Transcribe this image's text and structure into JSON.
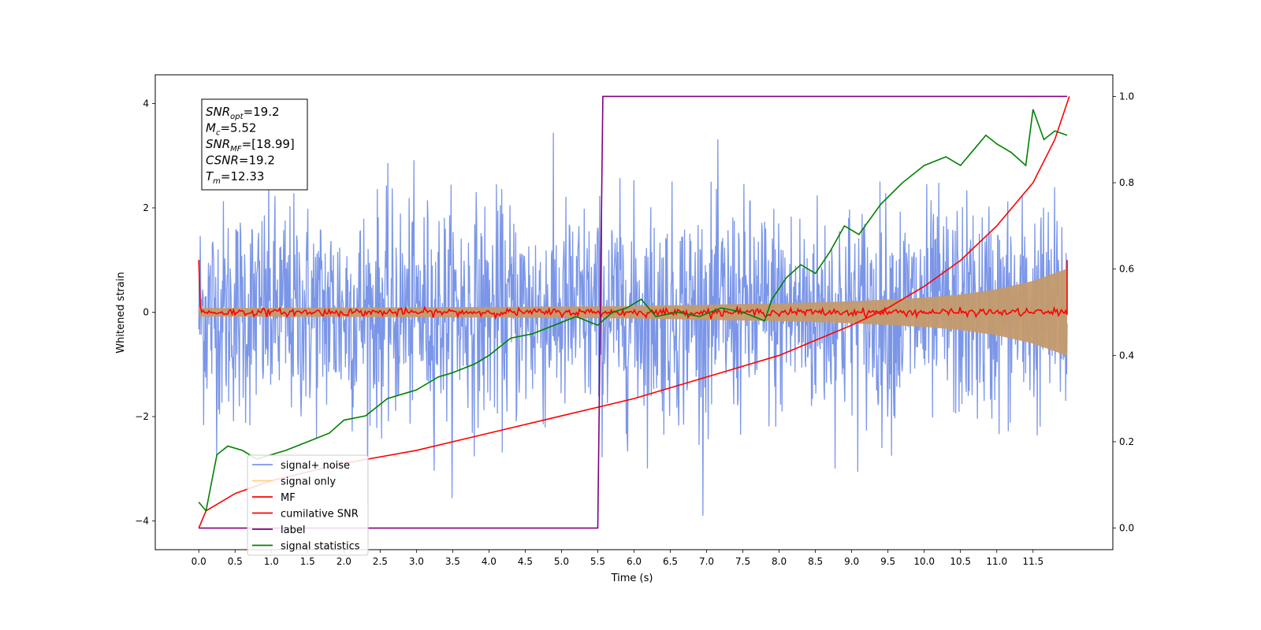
{
  "chart_data": {
    "type": "line",
    "xlabel": "Time (s)",
    "ylabel": "Whitened strain",
    "xlim": [
      -0.6,
      12.6
    ],
    "ylim": [
      -4.55,
      4.55
    ],
    "ylim_right": [
      -0.05,
      1.05
    ],
    "x_ticks": [
      "0.0",
      "0.5",
      "1.0",
      "1.5",
      "2.0",
      "2.5",
      "3.0",
      "3.5",
      "4.0",
      "4.5",
      "5.0",
      "5.5",
      "6.0",
      "6.5",
      "7.0",
      "7.5",
      "8.0",
      "8.5",
      "9.0",
      "9.5",
      "10.0",
      "10.5",
      "11.0",
      "11.5"
    ],
    "y_ticks": [
      "4",
      "2",
      "0",
      "−2",
      "−4"
    ],
    "y_ticks_right": [
      "1.0",
      "0.8",
      "0.6",
      "0.4",
      "0.2",
      "0.0"
    ],
    "grid": false,
    "legend_position": "lower-left",
    "annotations": [
      {
        "base": "SNR",
        "sub": "opt",
        "rest": "=19.2"
      },
      {
        "base": "M",
        "sub": "c",
        "rest": "=5.52"
      },
      {
        "base": "SNR",
        "sub": "MF",
        "rest": "=[18.99]"
      },
      {
        "base": "CSNR",
        "sub": "",
        "rest": "=19.2"
      },
      {
        "base": "T",
        "sub": "m",
        "rest": "=12.33"
      }
    ],
    "series": [
      {
        "name": "signal+ noise",
        "color": "#7b96e8",
        "axis": "left",
        "description": "white noise of amplitude ~1.0 from t=0 to t=12.0, peaks near ±3.7"
      },
      {
        "name": "signal only",
        "color": "#ffd27f",
        "axis": "left",
        "envelope": {
          "t": [
            0,
            2,
            4,
            6,
            8,
            9,
            10,
            10.5,
            11,
            11.5,
            12.0
          ],
          "amp": [
            0.08,
            0.09,
            0.1,
            0.12,
            0.17,
            0.21,
            0.28,
            0.34,
            0.44,
            0.6,
            0.85
          ]
        }
      },
      {
        "name": "MF",
        "color": "#ff0000",
        "axis": "left",
        "description": "noisy trace around 0 (±0.1), spikes to 1.0 at t=0 and t=12.0"
      },
      {
        "name": "cumilative SNR",
        "color": "#ff0000",
        "axis": "right",
        "x": [
          0,
          0.1,
          0.5,
          1,
          2,
          3,
          4,
          5,
          6,
          7,
          8,
          9,
          9.5,
          10,
          10.5,
          11,
          11.5,
          11.8,
          12.0
        ],
        "y": [
          0,
          0.04,
          0.08,
          0.11,
          0.15,
          0.18,
          0.22,
          0.26,
          0.3,
          0.35,
          0.4,
          0.47,
          0.51,
          0.56,
          0.62,
          0.7,
          0.8,
          0.9,
          1.0
        ]
      },
      {
        "name": "label",
        "color": "#800080",
        "axis": "right",
        "x": [
          0,
          5.5,
          5.57,
          11.97
        ],
        "y": [
          0,
          0,
          1,
          1
        ]
      },
      {
        "name": "signal statistics",
        "color": "#008000",
        "axis": "right",
        "x": [
          0,
          0.1,
          0.25,
          0.4,
          0.6,
          0.8,
          1.0,
          1.2,
          1.5,
          1.8,
          2.0,
          2.3,
          2.6,
          3.0,
          3.3,
          3.5,
          3.8,
          4.0,
          4.3,
          4.6,
          4.9,
          5.2,
          5.5,
          5.7,
          5.9,
          6.1,
          6.3,
          6.6,
          6.9,
          7.2,
          7.5,
          7.8,
          7.9,
          8.1,
          8.3,
          8.5,
          8.7,
          8.9,
          9.1,
          9.4,
          9.7,
          10.0,
          10.3,
          10.5,
          10.7,
          10.85,
          11.0,
          11.2,
          11.4,
          11.5,
          11.65,
          11.8,
          11.97
        ],
        "y": [
          0.06,
          0.04,
          0.17,
          0.19,
          0.18,
          0.16,
          0.17,
          0.18,
          0.2,
          0.22,
          0.25,
          0.26,
          0.3,
          0.32,
          0.35,
          0.36,
          0.38,
          0.4,
          0.44,
          0.45,
          0.47,
          0.49,
          0.47,
          0.5,
          0.51,
          0.53,
          0.49,
          0.5,
          0.49,
          0.51,
          0.5,
          0.48,
          0.53,
          0.58,
          0.61,
          0.59,
          0.64,
          0.7,
          0.68,
          0.75,
          0.8,
          0.84,
          0.86,
          0.84,
          0.88,
          0.91,
          0.89,
          0.87,
          0.84,
          0.97,
          0.9,
          0.92,
          0.91
        ]
      }
    ]
  }
}
